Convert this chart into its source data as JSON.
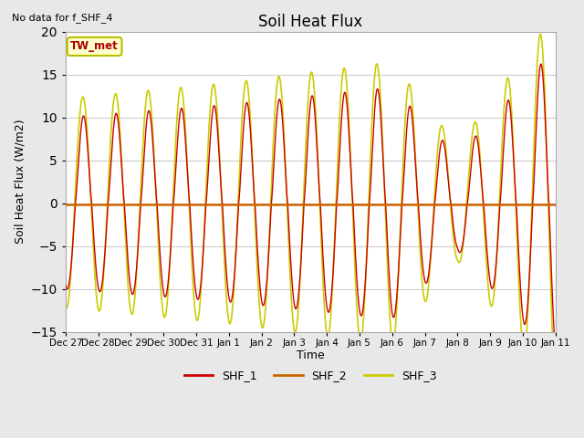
{
  "title": "Soil Heat Flux",
  "top_left_text": "No data for f_SHF_4",
  "ylabel": "Soil Heat Flux (W/m2)",
  "xlabel": "Time",
  "ylim": [
    -15,
    20
  ],
  "xlim": [
    0,
    15
  ],
  "fig_facecolor": "#e8e8e8",
  "plot_facecolor": "#ffffff",
  "shf1_color": "#cc0000",
  "shf2_color": "#cc6600",
  "shf3_color": "#cccc00",
  "legend_labels": [
    "SHF_1",
    "SHF_2",
    "SHF_3"
  ],
  "annotation_label": "TW_met",
  "annotation_color": "#aa0000",
  "annotation_bg": "#ffffcc",
  "annotation_edge": "#bbbb00",
  "n_days": 15,
  "samples_per_day": 144,
  "tick_labels": [
    "Dec 27",
    "Dec 28",
    "Dec 29",
    "Dec 30",
    "Dec 31",
    "Jan 1",
    "Jan 2",
    "Jan 3",
    "Jan 4",
    "Jan 5",
    "Jan 6",
    "Jan 7",
    "Jan 8",
    "Jan 9",
    "Jan 10",
    "Jan 11"
  ],
  "yticks": [
    -15,
    -10,
    -5,
    0,
    5,
    10,
    15,
    20
  ],
  "grid_color": "#cccccc",
  "figsize": [
    6.4,
    4.8
  ],
  "dpi": 100
}
